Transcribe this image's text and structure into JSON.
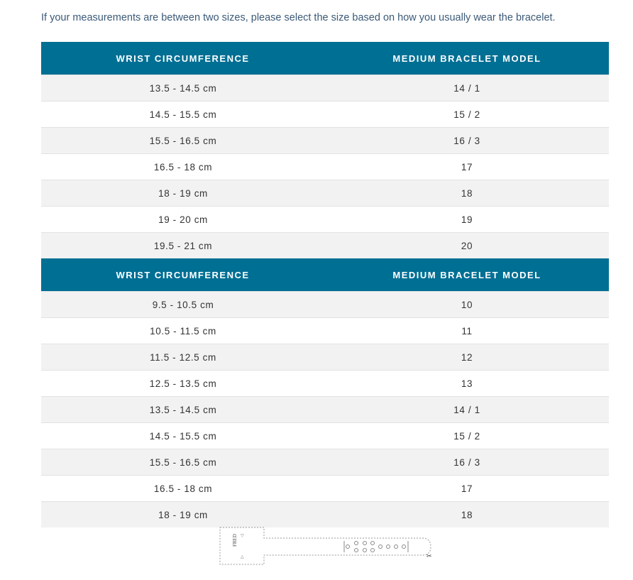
{
  "intro": "If your measurements are between two sizes, please select the size based on how you usually wear the bracelet.",
  "tables": [
    {
      "headers": [
        "WRIST CIRCUMFERENCE",
        "MEDIUM BRACELET MODEL"
      ],
      "rows": [
        [
          "13.5 - 14.5 cm",
          "14 / 1"
        ],
        [
          "14.5 - 15.5 cm",
          "15 / 2"
        ],
        [
          "15.5 - 16.5 cm",
          "16 / 3"
        ],
        [
          "16.5 - 18 cm",
          "17"
        ],
        [
          "18 - 19 cm",
          "18"
        ],
        [
          "19 - 20 cm",
          "19"
        ],
        [
          "19.5 - 21 cm",
          "20"
        ]
      ]
    },
    {
      "headers": [
        "WRIST CIRCUMFERENCE",
        "MEDIUM BRACELET MODEL"
      ],
      "rows": [
        [
          "9.5 - 10.5 cm",
          "10"
        ],
        [
          "10.5 - 11.5 cm",
          "11"
        ],
        [
          "11.5 - 12.5 cm",
          "12"
        ],
        [
          "12.5 - 13.5 cm",
          "13"
        ],
        [
          "13.5 - 14.5 cm",
          "14 / 1"
        ],
        [
          "14.5 - 15.5 cm",
          "15 / 2"
        ],
        [
          "15.5 - 16.5 cm",
          "16 / 3"
        ],
        [
          "16.5 - 18 cm",
          "17"
        ],
        [
          "18 - 19 cm",
          "18"
        ]
      ]
    }
  ],
  "bracelet_logo": "FRED",
  "colors": {
    "header": "#006f94",
    "row_alt": "#f2f2f2"
  }
}
